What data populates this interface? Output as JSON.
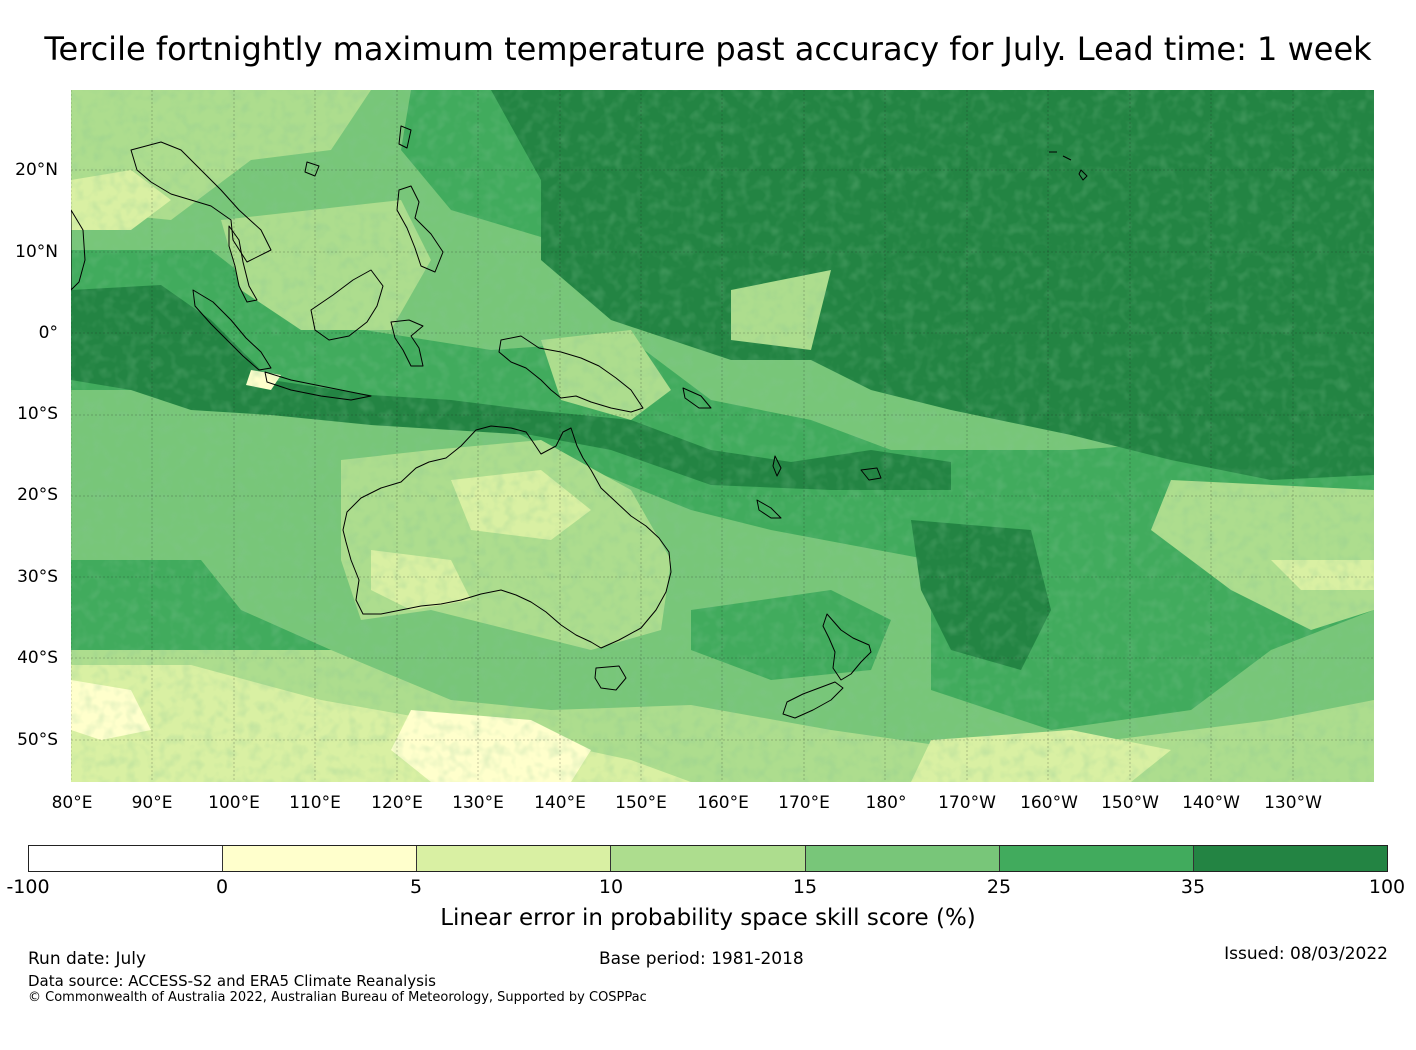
{
  "title": "Tercile fortnightly maximum temperature past accuracy for July. Lead time: 1 week",
  "map": {
    "lat_labels": [
      "20°N",
      "10°N",
      "0°",
      "10°S",
      "20°S",
      "30°S",
      "40°S",
      "50°S"
    ],
    "lon_labels": [
      "80°E",
      "90°E",
      "100°E",
      "110°E",
      "120°E",
      "130°E",
      "140°E",
      "150°E",
      "160°E",
      "170°E",
      "180°",
      "170°W",
      "160°W",
      "150°W",
      "140°W",
      "130°W"
    ],
    "colors": {
      "lt0": "#ffffff",
      "0-5": "#ffffcc",
      "5-10": "#d9f0a3",
      "10-15": "#addd8e",
      "15-25": "#78c679",
      "25-35": "#41ab5d",
      "35-100": "#238443"
    }
  },
  "colorbar": {
    "ticks": [
      "-100",
      "0",
      "5",
      "10",
      "15",
      "25",
      "35",
      "100"
    ],
    "colors": [
      "#ffffff",
      "#ffffcc",
      "#d9f0a3",
      "#addd8e",
      "#78c679",
      "#41ab5d",
      "#238443"
    ],
    "label": "Linear error in probability space skill score (%)"
  },
  "footer": {
    "run_date": "Run date: July",
    "base_period": "Base period: 1981-2018",
    "issued": "Issued: 08/03/2022",
    "data_source": "Data source: ACCESS-S2 and ERA5 Climate Reanalysis",
    "copyright": "© Commonwealth of Australia 2022, Australian Bureau of Meteorology, Supported by COSPPac"
  }
}
